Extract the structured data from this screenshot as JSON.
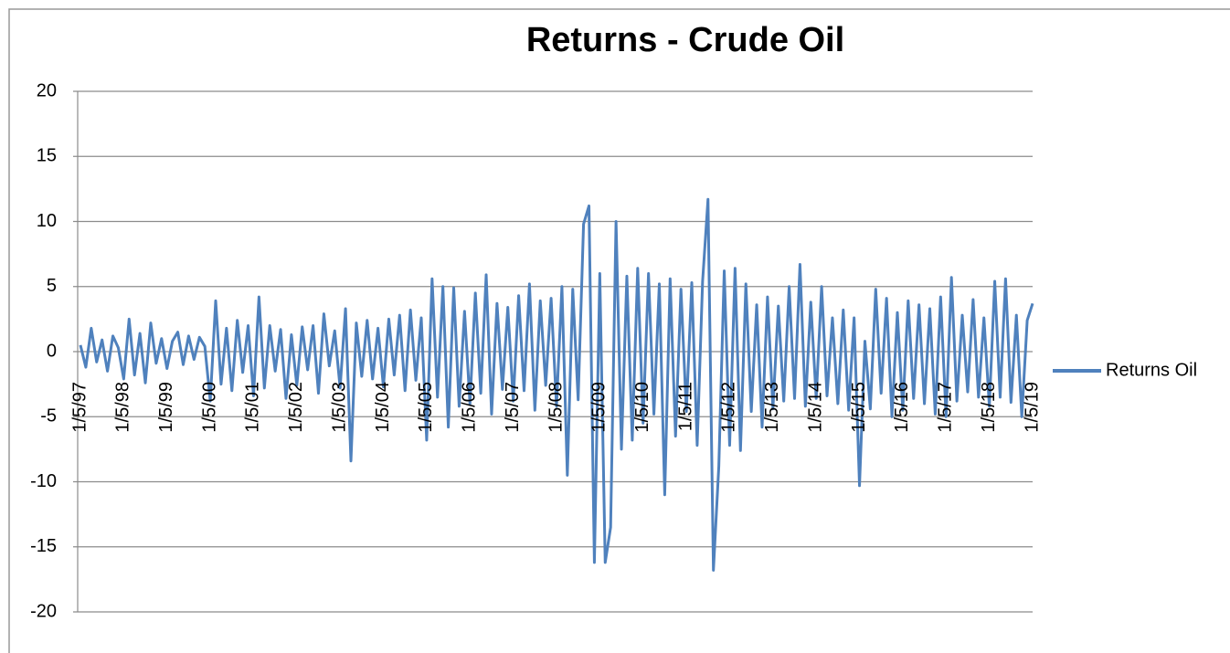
{
  "chart_data": {
    "type": "line",
    "title": "Returns - Crude Oil",
    "categories": [
      "1/5/97",
      null,
      null,
      null,
      null,
      null,
      null,
      null,
      "1/5/98",
      null,
      null,
      null,
      null,
      null,
      null,
      null,
      "1/5/99",
      null,
      null,
      null,
      null,
      null,
      null,
      null,
      "1/5/00",
      null,
      null,
      null,
      null,
      null,
      null,
      null,
      "1/5/01",
      null,
      null,
      null,
      null,
      null,
      null,
      null,
      "1/5/02",
      null,
      null,
      null,
      null,
      null,
      null,
      null,
      "1/5/03",
      null,
      null,
      null,
      null,
      null,
      null,
      null,
      "1/5/04",
      null,
      null,
      null,
      null,
      null,
      null,
      null,
      "1/5/05",
      null,
      null,
      null,
      null,
      null,
      null,
      null,
      "1/5/06",
      null,
      null,
      null,
      null,
      null,
      null,
      null,
      "1/5/07",
      null,
      null,
      null,
      null,
      null,
      null,
      null,
      "1/5/08",
      null,
      null,
      null,
      null,
      null,
      null,
      null,
      "1/5/09",
      null,
      null,
      null,
      null,
      null,
      null,
      null,
      "1/5/10",
      null,
      null,
      null,
      null,
      null,
      null,
      null,
      "1/5/11",
      null,
      null,
      null,
      null,
      null,
      null,
      null,
      "1/5/12",
      null,
      null,
      null,
      null,
      null,
      null,
      null,
      "1/5/13",
      null,
      null,
      null,
      null,
      null,
      null,
      null,
      "1/5/14",
      null,
      null,
      null,
      null,
      null,
      null,
      null,
      "1/5/15",
      null,
      null,
      null,
      null,
      null,
      null,
      null,
      "1/5/16",
      null,
      null,
      null,
      null,
      null,
      null,
      null,
      "1/5/17",
      null,
      null,
      null,
      null,
      null,
      null,
      null,
      "1/5/18",
      null,
      null,
      null,
      null,
      null,
      null,
      null,
      "1/5/19"
    ],
    "series": [
      {
        "name": "Returns Oil",
        "color": "#4f81bd",
        "values": [
          0.5,
          -1.2,
          1.8,
          -0.8,
          0.9,
          -1.5,
          1.2,
          0.3,
          -2.1,
          2.5,
          -1.8,
          1.4,
          -2.4,
          2.2,
          -0.9,
          1.0,
          -1.3,
          0.8,
          1.5,
          -1.0,
          1.2,
          -0.6,
          1.1,
          0.4,
          -3.8,
          3.9,
          -2.5,
          1.8,
          -3.0,
          2.4,
          -1.6,
          2.0,
          -3.4,
          4.2,
          -2.8,
          2.0,
          -1.5,
          1.7,
          -3.6,
          1.3,
          -2.6,
          1.9,
          -1.4,
          2.0,
          -3.2,
          2.9,
          -1.1,
          1.6,
          -2.8,
          3.3,
          -8.4,
          2.2,
          -1.9,
          2.4,
          -2.1,
          1.8,
          -2.7,
          2.5,
          -1.8,
          2.8,
          -3.0,
          3.2,
          -2.2,
          2.6,
          -6.8,
          5.6,
          -3.5,
          5.0,
          -5.8,
          4.9,
          -4.2,
          3.1,
          -4.0,
          4.5,
          -3.2,
          5.9,
          -4.8,
          3.7,
          -2.9,
          3.4,
          -3.8,
          4.3,
          -3.0,
          5.2,
          -4.5,
          3.9,
          -2.6,
          4.1,
          -4.2,
          5.0,
          -9.5,
          4.8,
          -3.7,
          9.8,
          11.2,
          -16.2,
          6.0,
          -16.2,
          -13.5,
          10.0,
          -7.5,
          5.8,
          -6.8,
          6.4,
          -5.5,
          6.0,
          -4.8,
          5.2,
          -11.0,
          5.6,
          -6.5,
          4.8,
          -4.6,
          5.3,
          -7.2,
          5.4,
          11.7,
          -16.8,
          -8.8,
          6.2,
          -7.2,
          6.4,
          -7.6,
          5.2,
          -4.6,
          3.6,
          -5.8,
          4.2,
          -4.4,
          3.5,
          -3.8,
          5.0,
          -3.6,
          6.7,
          -4.2,
          3.8,
          -3.6,
          5.0,
          -3.4,
          2.6,
          -4.0,
          3.2,
          -4.5,
          2.6,
          -10.3,
          0.8,
          -4.4,
          4.8,
          -3.2,
          4.1,
          -5.0,
          3.0,
          -4.5,
          3.9,
          -3.6,
          3.6,
          -4.0,
          3.3,
          -4.8,
          4.2,
          -5.0,
          5.7,
          -3.8,
          2.8,
          -3.1,
          4.0,
          -3.5,
          2.6,
          -4.2,
          5.4,
          -3.5,
          5.6,
          -3.9,
          2.8,
          -5.0,
          2.4,
          3.7
        ]
      }
    ],
    "ylim": [
      -20,
      20
    ],
    "yticks": [
      -20,
      -15,
      -10,
      -5,
      0,
      5,
      10,
      15,
      20
    ],
    "grid": true,
    "legend": "right"
  }
}
